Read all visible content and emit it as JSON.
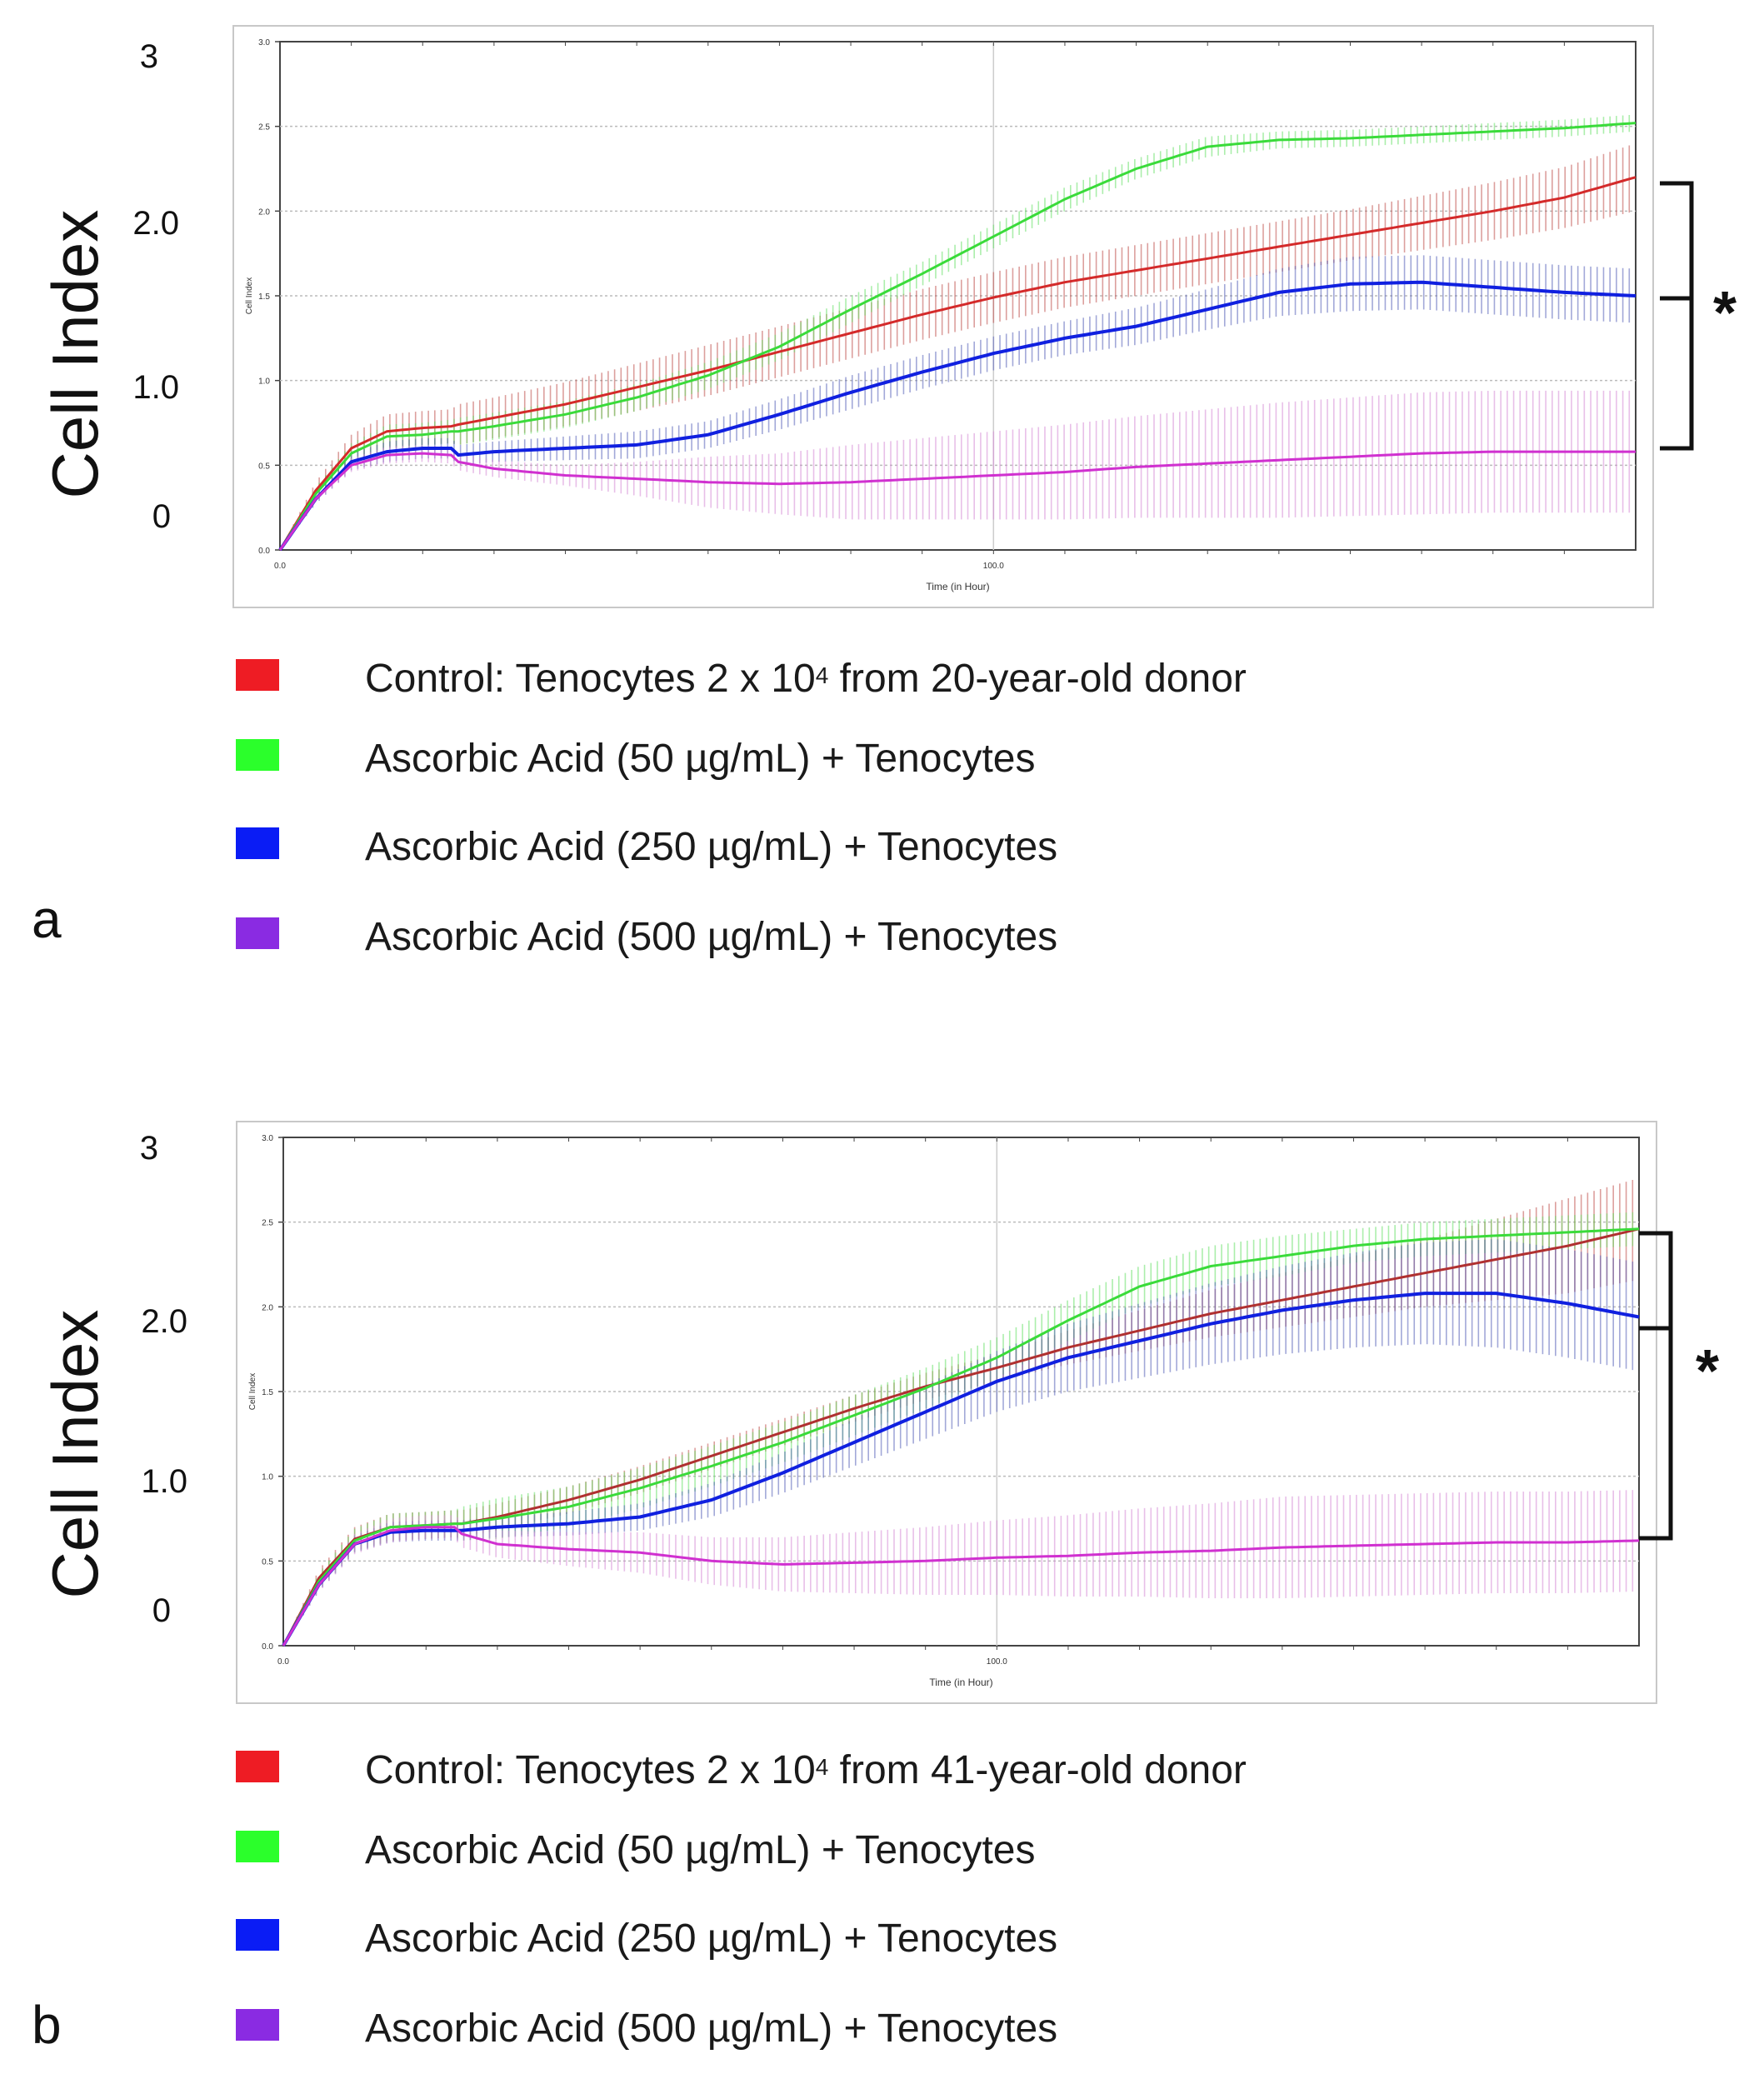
{
  "panels": [
    {
      "letter": "a",
      "y_axis_label": "Cell Index",
      "big_ticks": [
        "3",
        "2.0",
        "1.0",
        "0"
      ],
      "significance": "*",
      "legend": [
        {
          "pre": "Control: Tenocytes 2 x 10",
          "sup": "4",
          "post": " from 20-year-old donor",
          "color": "#ee1c24"
        },
        {
          "pre": "Ascorbic Acid (50 µg/mL) + Tenocytes",
          "sup": "",
          "post": "",
          "color": "#2bff2b"
        },
        {
          "pre": "Ascorbic Acid (250 µg/mL) + Tenocytes",
          "sup": "",
          "post": "",
          "color": "#0a1cf5"
        },
        {
          "pre": "Ascorbic Acid (500 µg/mL) + Tenocytes",
          "sup": "",
          "post": "",
          "color": "#8a2be2"
        }
      ]
    },
    {
      "letter": "b",
      "y_axis_label": "Cell Index",
      "big_ticks": [
        "3",
        "2.0",
        "1.0",
        "0"
      ],
      "significance": "*",
      "legend": [
        {
          "pre": "Control: Tenocytes 2 x 10",
          "sup": "4",
          "post": " from 41-year-old donor",
          "color": "#ee1c24"
        },
        {
          "pre": "Ascorbic Acid (50 µg/mL) + Tenocytes",
          "sup": "",
          "post": "",
          "color": "#2bff2b"
        },
        {
          "pre": "Ascorbic Acid (250 µg/mL) + Tenocytes",
          "sup": "",
          "post": "",
          "color": "#0a1cf5"
        },
        {
          "pre": "Ascorbic Acid (500 µg/mL) + Tenocytes",
          "sup": "",
          "post": "",
          "color": "#8a2be2"
        }
      ]
    }
  ],
  "chart_data": [
    {
      "type": "line",
      "title": "",
      "xlabel": "Time (in Hour)",
      "ylabel": "Cell Index",
      "xlim": [
        0,
        190
      ],
      "ylim": [
        0,
        3.0
      ],
      "xticks": [
        {
          "v": 0,
          "label": "0.0"
        },
        {
          "v": 100,
          "label": "100.0"
        }
      ],
      "yticks": [
        {
          "v": 0,
          "label": "0.0"
        },
        {
          "v": 0.5,
          "label": "0.5"
        },
        {
          "v": 1.0,
          "label": "1.0"
        },
        {
          "v": 1.5,
          "label": "1.5"
        },
        {
          "v": 2.0,
          "label": "2.0"
        },
        {
          "v": 2.5,
          "label": "2.5"
        },
        {
          "v": 3.0,
          "label": "3.0"
        }
      ],
      "grid": true,
      "error_bars": true,
      "series": [
        {
          "name": "Control",
          "color": "#d42a2a",
          "band": "#c0504d",
          "x": [
            0,
            5,
            10,
            15,
            20,
            24,
            25,
            30,
            40,
            50,
            60,
            70,
            80,
            90,
            100,
            110,
            120,
            130,
            140,
            150,
            160,
            170,
            180,
            190
          ],
          "y": [
            0,
            0.35,
            0.6,
            0.7,
            0.72,
            0.73,
            0.74,
            0.78,
            0.86,
            0.96,
            1.06,
            1.17,
            1.28,
            1.39,
            1.49,
            1.58,
            1.65,
            1.72,
            1.79,
            1.86,
            1.93,
            2.0,
            2.08,
            2.2
          ],
          "err": [
            0,
            0.05,
            0.08,
            0.1,
            0.1,
            0.1,
            0.12,
            0.12,
            0.13,
            0.14,
            0.15,
            0.15,
            0.15,
            0.15,
            0.15,
            0.15,
            0.15,
            0.15,
            0.15,
            0.15,
            0.16,
            0.17,
            0.18,
            0.2
          ]
        },
        {
          "name": "Ascorbic Acid (50 µg/mL)",
          "color": "#3adb3a",
          "band": "#66e066",
          "x": [
            0,
            5,
            10,
            15,
            20,
            24,
            25,
            30,
            40,
            50,
            60,
            70,
            80,
            90,
            100,
            110,
            120,
            130,
            140,
            150,
            160,
            170,
            180,
            190
          ],
          "y": [
            0,
            0.33,
            0.57,
            0.67,
            0.68,
            0.7,
            0.7,
            0.73,
            0.8,
            0.9,
            1.03,
            1.2,
            1.42,
            1.63,
            1.85,
            2.07,
            2.25,
            2.38,
            2.42,
            2.43,
            2.45,
            2.47,
            2.49,
            2.52
          ],
          "err": [
            0,
            0.04,
            0.06,
            0.07,
            0.07,
            0.07,
            0.08,
            0.08,
            0.08,
            0.08,
            0.08,
            0.08,
            0.08,
            0.07,
            0.07,
            0.07,
            0.06,
            0.06,
            0.05,
            0.05,
            0.05,
            0.05,
            0.05,
            0.05
          ]
        },
        {
          "name": "Ascorbic Acid (250 µg/mL)",
          "color": "#1020e0",
          "band": "#5560b8",
          "x": [
            0,
            5,
            10,
            15,
            20,
            24,
            25,
            30,
            40,
            50,
            60,
            70,
            80,
            90,
            100,
            110,
            120,
            130,
            140,
            150,
            160,
            170,
            180,
            190
          ],
          "y": [
            0,
            0.3,
            0.52,
            0.58,
            0.6,
            0.6,
            0.56,
            0.58,
            0.6,
            0.62,
            0.68,
            0.8,
            0.93,
            1.05,
            1.16,
            1.25,
            1.32,
            1.42,
            1.52,
            1.57,
            1.58,
            1.55,
            1.52,
            1.5
          ],
          "err": [
            0,
            0.03,
            0.05,
            0.06,
            0.06,
            0.06,
            0.06,
            0.06,
            0.07,
            0.08,
            0.08,
            0.09,
            0.1,
            0.1,
            0.1,
            0.1,
            0.11,
            0.12,
            0.14,
            0.16,
            0.16,
            0.16,
            0.16,
            0.16
          ]
        },
        {
          "name": "Ascorbic Acid (500 µg/mL)",
          "color": "#d030d0",
          "band": "#d68ad6",
          "x": [
            0,
            5,
            10,
            15,
            20,
            24,
            25,
            30,
            40,
            50,
            60,
            70,
            80,
            90,
            100,
            110,
            120,
            130,
            140,
            150,
            160,
            170,
            180,
            190
          ],
          "y": [
            0,
            0.3,
            0.5,
            0.56,
            0.57,
            0.56,
            0.52,
            0.48,
            0.44,
            0.42,
            0.4,
            0.39,
            0.4,
            0.42,
            0.44,
            0.46,
            0.49,
            0.51,
            0.53,
            0.55,
            0.57,
            0.58,
            0.58,
            0.58
          ],
          "err": [
            0,
            0.02,
            0.04,
            0.05,
            0.05,
            0.05,
            0.05,
            0.05,
            0.06,
            0.1,
            0.15,
            0.18,
            0.22,
            0.24,
            0.26,
            0.28,
            0.3,
            0.32,
            0.34,
            0.35,
            0.36,
            0.36,
            0.36,
            0.36
          ]
        }
      ]
    },
    {
      "type": "line",
      "title": "",
      "xlabel": "Time (in Hour)",
      "ylabel": "Cell Index",
      "xlim": [
        0,
        190
      ],
      "ylim": [
        0,
        3.0
      ],
      "xticks": [
        {
          "v": 0,
          "label": "0.0"
        },
        {
          "v": 100,
          "label": "100.0"
        }
      ],
      "yticks": [
        {
          "v": 0,
          "label": "0.0"
        },
        {
          "v": 0.5,
          "label": "0.5"
        },
        {
          "v": 1.0,
          "label": "1.0"
        },
        {
          "v": 1.5,
          "label": "1.5"
        },
        {
          "v": 2.0,
          "label": "2.0"
        },
        {
          "v": 2.5,
          "label": "2.5"
        },
        {
          "v": 3.0,
          "label": "3.0"
        }
      ],
      "grid": true,
      "error_bars": true,
      "series": [
        {
          "name": "Control",
          "color": "#b03030",
          "band": "#c0504d",
          "x": [
            0,
            5,
            10,
            15,
            20,
            24,
            25,
            30,
            40,
            50,
            60,
            70,
            80,
            90,
            100,
            110,
            120,
            130,
            140,
            150,
            160,
            170,
            180,
            190
          ],
          "y": [
            0,
            0.4,
            0.63,
            0.7,
            0.71,
            0.72,
            0.72,
            0.76,
            0.86,
            0.98,
            1.12,
            1.26,
            1.4,
            1.53,
            1.64,
            1.76,
            1.86,
            1.96,
            2.04,
            2.12,
            2.2,
            2.28,
            2.36,
            2.46
          ],
          "err": [
            0,
            0.05,
            0.07,
            0.08,
            0.08,
            0.08,
            0.08,
            0.08,
            0.08,
            0.08,
            0.08,
            0.08,
            0.08,
            0.08,
            0.08,
            0.1,
            0.12,
            0.14,
            0.16,
            0.18,
            0.2,
            0.24,
            0.28,
            0.3
          ]
        },
        {
          "name": "Ascorbic Acid (50 µg/mL)",
          "color": "#3adb3a",
          "band": "#66e066",
          "x": [
            0,
            5,
            10,
            15,
            20,
            24,
            25,
            30,
            40,
            50,
            60,
            70,
            80,
            90,
            100,
            110,
            120,
            130,
            140,
            150,
            160,
            170,
            180,
            190
          ],
          "y": [
            0,
            0.38,
            0.62,
            0.7,
            0.71,
            0.72,
            0.72,
            0.75,
            0.82,
            0.93,
            1.06,
            1.2,
            1.36,
            1.52,
            1.7,
            1.92,
            2.12,
            2.24,
            2.3,
            2.36,
            2.4,
            2.42,
            2.44,
            2.46
          ],
          "err": [
            0,
            0.05,
            0.07,
            0.08,
            0.08,
            0.08,
            0.1,
            0.12,
            0.12,
            0.12,
            0.12,
            0.12,
            0.12,
            0.12,
            0.12,
            0.12,
            0.12,
            0.12,
            0.12,
            0.1,
            0.1,
            0.1,
            0.1,
            0.1
          ]
        },
        {
          "name": "Ascorbic Acid (250 µg/mL)",
          "color": "#1020e0",
          "band": "#5560b8",
          "x": [
            0,
            5,
            10,
            15,
            20,
            24,
            25,
            30,
            40,
            50,
            60,
            70,
            80,
            90,
            100,
            110,
            120,
            130,
            140,
            150,
            160,
            170,
            180,
            190
          ],
          "y": [
            0,
            0.36,
            0.6,
            0.67,
            0.68,
            0.68,
            0.68,
            0.7,
            0.72,
            0.76,
            0.86,
            1.02,
            1.2,
            1.38,
            1.56,
            1.7,
            1.8,
            1.9,
            1.98,
            2.04,
            2.08,
            2.08,
            2.02,
            1.94
          ],
          "err": [
            0,
            0.04,
            0.05,
            0.06,
            0.06,
            0.06,
            0.06,
            0.06,
            0.07,
            0.08,
            0.1,
            0.12,
            0.14,
            0.16,
            0.18,
            0.2,
            0.22,
            0.24,
            0.26,
            0.28,
            0.3,
            0.32,
            0.32,
            0.32
          ]
        },
        {
          "name": "Ascorbic Acid (500 µg/mL)",
          "color": "#d030d0",
          "band": "#d68ad6",
          "x": [
            0,
            5,
            10,
            15,
            20,
            24,
            25,
            30,
            40,
            50,
            60,
            70,
            80,
            90,
            100,
            110,
            120,
            130,
            140,
            150,
            160,
            170,
            180,
            190
          ],
          "y": [
            0,
            0.36,
            0.6,
            0.68,
            0.7,
            0.7,
            0.66,
            0.6,
            0.57,
            0.55,
            0.5,
            0.48,
            0.49,
            0.5,
            0.52,
            0.53,
            0.55,
            0.56,
            0.58,
            0.59,
            0.6,
            0.61,
            0.61,
            0.62
          ],
          "err": [
            0,
            0.04,
            0.06,
            0.07,
            0.07,
            0.07,
            0.08,
            0.08,
            0.1,
            0.12,
            0.14,
            0.16,
            0.18,
            0.2,
            0.22,
            0.24,
            0.26,
            0.28,
            0.3,
            0.3,
            0.3,
            0.3,
            0.3,
            0.3
          ]
        }
      ]
    }
  ]
}
